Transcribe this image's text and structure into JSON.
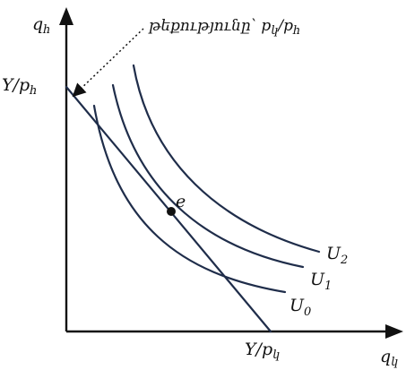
{
  "colors": {
    "curve": "#1f2d4a",
    "axis": "#111111",
    "text": "#111111"
  },
  "axes": {
    "y_label": "q",
    "y_label_sub": "հ",
    "x_label": "q",
    "x_label_sub": "կ"
  },
  "intercepts": {
    "y_label": "Y/p",
    "y_label_sub": "հ",
    "x_label": "Y/p",
    "x_label_sub": "կ"
  },
  "annotation": {
    "text": "թեքությունը՝ p",
    "sub1": "կ",
    "slash": "/p",
    "sub2": "հ"
  },
  "point": {
    "label": "e"
  },
  "curves": [
    {
      "label": "U",
      "sub": "2"
    },
    {
      "label": "U",
      "sub": "1"
    },
    {
      "label": "U",
      "sub": "0"
    }
  ]
}
